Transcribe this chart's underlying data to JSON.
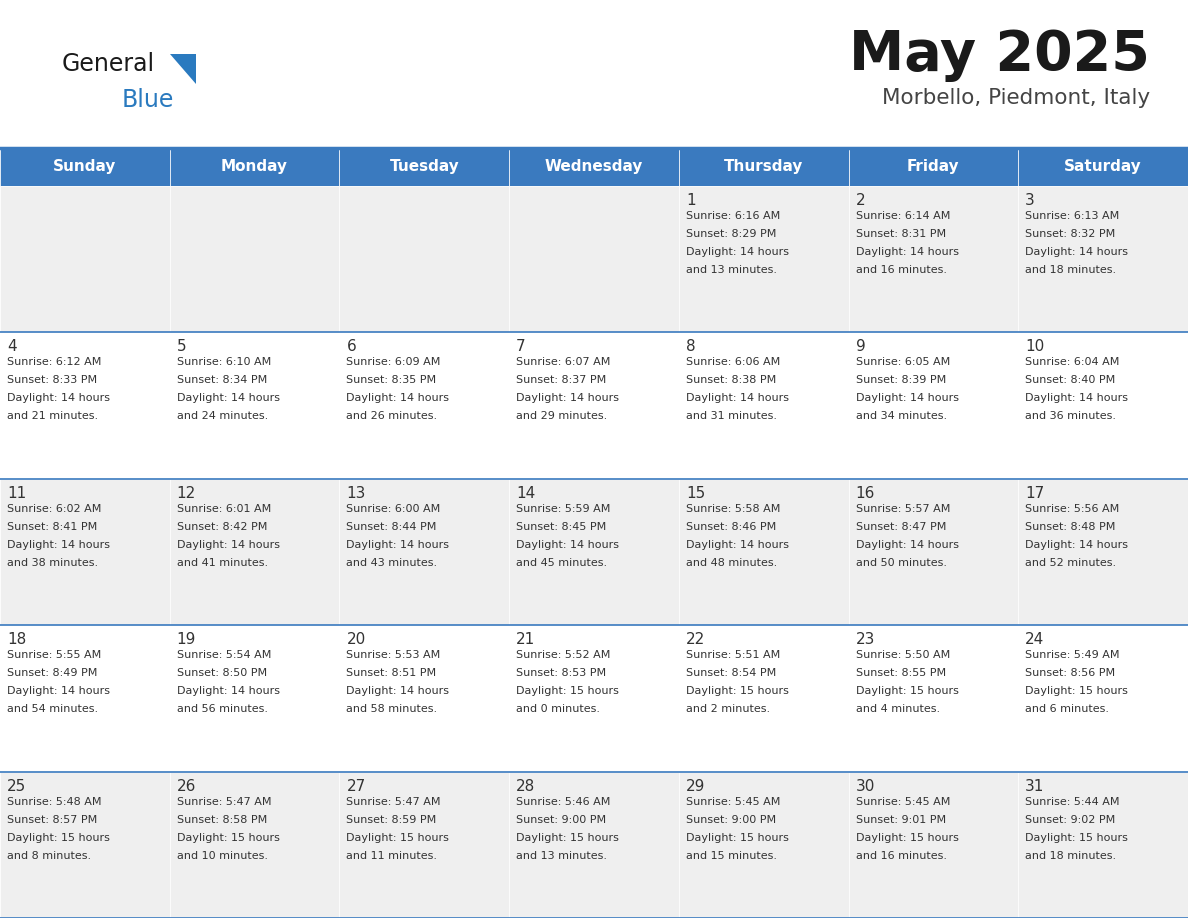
{
  "title": "May 2025",
  "subtitle": "Morbello, Piedmont, Italy",
  "header_color": "#3a7abf",
  "header_text_color": "#ffffff",
  "cell_bg_odd": "#efefef",
  "cell_bg_even": "#ffffff",
  "text_color": "#333333",
  "days_of_week": [
    "Sunday",
    "Monday",
    "Tuesday",
    "Wednesday",
    "Thursday",
    "Friday",
    "Saturday"
  ],
  "weeks": [
    [
      {
        "day": "",
        "sunrise": "",
        "sunset": "",
        "daylight": ""
      },
      {
        "day": "",
        "sunrise": "",
        "sunset": "",
        "daylight": ""
      },
      {
        "day": "",
        "sunrise": "",
        "sunset": "",
        "daylight": ""
      },
      {
        "day": "",
        "sunrise": "",
        "sunset": "",
        "daylight": ""
      },
      {
        "day": "1",
        "sunrise": "Sunrise: 6:16 AM",
        "sunset": "Sunset: 8:29 PM",
        "daylight": "Daylight: 14 hours\nand 13 minutes."
      },
      {
        "day": "2",
        "sunrise": "Sunrise: 6:14 AM",
        "sunset": "Sunset: 8:31 PM",
        "daylight": "Daylight: 14 hours\nand 16 minutes."
      },
      {
        "day": "3",
        "sunrise": "Sunrise: 6:13 AM",
        "sunset": "Sunset: 8:32 PM",
        "daylight": "Daylight: 14 hours\nand 18 minutes."
      }
    ],
    [
      {
        "day": "4",
        "sunrise": "Sunrise: 6:12 AM",
        "sunset": "Sunset: 8:33 PM",
        "daylight": "Daylight: 14 hours\nand 21 minutes."
      },
      {
        "day": "5",
        "sunrise": "Sunrise: 6:10 AM",
        "sunset": "Sunset: 8:34 PM",
        "daylight": "Daylight: 14 hours\nand 24 minutes."
      },
      {
        "day": "6",
        "sunrise": "Sunrise: 6:09 AM",
        "sunset": "Sunset: 8:35 PM",
        "daylight": "Daylight: 14 hours\nand 26 minutes."
      },
      {
        "day": "7",
        "sunrise": "Sunrise: 6:07 AM",
        "sunset": "Sunset: 8:37 PM",
        "daylight": "Daylight: 14 hours\nand 29 minutes."
      },
      {
        "day": "8",
        "sunrise": "Sunrise: 6:06 AM",
        "sunset": "Sunset: 8:38 PM",
        "daylight": "Daylight: 14 hours\nand 31 minutes."
      },
      {
        "day": "9",
        "sunrise": "Sunrise: 6:05 AM",
        "sunset": "Sunset: 8:39 PM",
        "daylight": "Daylight: 14 hours\nand 34 minutes."
      },
      {
        "day": "10",
        "sunrise": "Sunrise: 6:04 AM",
        "sunset": "Sunset: 8:40 PM",
        "daylight": "Daylight: 14 hours\nand 36 minutes."
      }
    ],
    [
      {
        "day": "11",
        "sunrise": "Sunrise: 6:02 AM",
        "sunset": "Sunset: 8:41 PM",
        "daylight": "Daylight: 14 hours\nand 38 minutes."
      },
      {
        "day": "12",
        "sunrise": "Sunrise: 6:01 AM",
        "sunset": "Sunset: 8:42 PM",
        "daylight": "Daylight: 14 hours\nand 41 minutes."
      },
      {
        "day": "13",
        "sunrise": "Sunrise: 6:00 AM",
        "sunset": "Sunset: 8:44 PM",
        "daylight": "Daylight: 14 hours\nand 43 minutes."
      },
      {
        "day": "14",
        "sunrise": "Sunrise: 5:59 AM",
        "sunset": "Sunset: 8:45 PM",
        "daylight": "Daylight: 14 hours\nand 45 minutes."
      },
      {
        "day": "15",
        "sunrise": "Sunrise: 5:58 AM",
        "sunset": "Sunset: 8:46 PM",
        "daylight": "Daylight: 14 hours\nand 48 minutes."
      },
      {
        "day": "16",
        "sunrise": "Sunrise: 5:57 AM",
        "sunset": "Sunset: 8:47 PM",
        "daylight": "Daylight: 14 hours\nand 50 minutes."
      },
      {
        "day": "17",
        "sunrise": "Sunrise: 5:56 AM",
        "sunset": "Sunset: 8:48 PM",
        "daylight": "Daylight: 14 hours\nand 52 minutes."
      }
    ],
    [
      {
        "day": "18",
        "sunrise": "Sunrise: 5:55 AM",
        "sunset": "Sunset: 8:49 PM",
        "daylight": "Daylight: 14 hours\nand 54 minutes."
      },
      {
        "day": "19",
        "sunrise": "Sunrise: 5:54 AM",
        "sunset": "Sunset: 8:50 PM",
        "daylight": "Daylight: 14 hours\nand 56 minutes."
      },
      {
        "day": "20",
        "sunrise": "Sunrise: 5:53 AM",
        "sunset": "Sunset: 8:51 PM",
        "daylight": "Daylight: 14 hours\nand 58 minutes."
      },
      {
        "day": "21",
        "sunrise": "Sunrise: 5:52 AM",
        "sunset": "Sunset: 8:53 PM",
        "daylight": "Daylight: 15 hours\nand 0 minutes."
      },
      {
        "day": "22",
        "sunrise": "Sunrise: 5:51 AM",
        "sunset": "Sunset: 8:54 PM",
        "daylight": "Daylight: 15 hours\nand 2 minutes."
      },
      {
        "day": "23",
        "sunrise": "Sunrise: 5:50 AM",
        "sunset": "Sunset: 8:55 PM",
        "daylight": "Daylight: 15 hours\nand 4 minutes."
      },
      {
        "day": "24",
        "sunrise": "Sunrise: 5:49 AM",
        "sunset": "Sunset: 8:56 PM",
        "daylight": "Daylight: 15 hours\nand 6 minutes."
      }
    ],
    [
      {
        "day": "25",
        "sunrise": "Sunrise: 5:48 AM",
        "sunset": "Sunset: 8:57 PM",
        "daylight": "Daylight: 15 hours\nand 8 minutes."
      },
      {
        "day": "26",
        "sunrise": "Sunrise: 5:47 AM",
        "sunset": "Sunset: 8:58 PM",
        "daylight": "Daylight: 15 hours\nand 10 minutes."
      },
      {
        "day": "27",
        "sunrise": "Sunrise: 5:47 AM",
        "sunset": "Sunset: 8:59 PM",
        "daylight": "Daylight: 15 hours\nand 11 minutes."
      },
      {
        "day": "28",
        "sunrise": "Sunrise: 5:46 AM",
        "sunset": "Sunset: 9:00 PM",
        "daylight": "Daylight: 15 hours\nand 13 minutes."
      },
      {
        "day": "29",
        "sunrise": "Sunrise: 5:45 AM",
        "sunset": "Sunset: 9:00 PM",
        "daylight": "Daylight: 15 hours\nand 15 minutes."
      },
      {
        "day": "30",
        "sunrise": "Sunrise: 5:45 AM",
        "sunset": "Sunset: 9:01 PM",
        "daylight": "Daylight: 15 hours\nand 16 minutes."
      },
      {
        "day": "31",
        "sunrise": "Sunrise: 5:44 AM",
        "sunset": "Sunset: 9:02 PM",
        "daylight": "Daylight: 15 hours\nand 18 minutes."
      }
    ]
  ]
}
